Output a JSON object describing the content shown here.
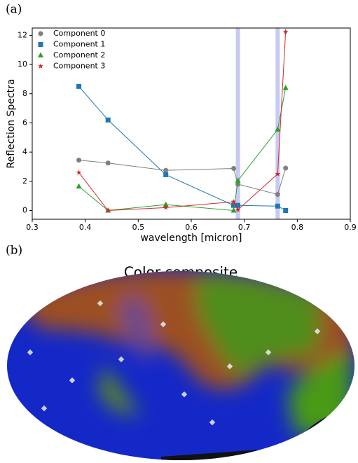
{
  "chart_data": [
    {
      "type": "line",
      "label": "(a)",
      "xlabel": "wavelength [micron]",
      "ylabel": "Reflection Spectra",
      "x": [
        0.388,
        0.443,
        0.552,
        0.68,
        0.688,
        0.763,
        0.778
      ],
      "series": [
        {
          "name": "Component 0",
          "color": "#7f7f7f",
          "marker": "circle",
          "values": [
            3.45,
            3.25,
            2.75,
            2.88,
            1.8,
            1.1,
            2.9
          ]
        },
        {
          "name": "Component 1",
          "color": "#1f77b4",
          "marker": "square",
          "values": [
            8.5,
            6.2,
            2.45,
            0.35,
            0.35,
            0.3,
            0.0
          ]
        },
        {
          "name": "Component 2",
          "color": "#2ca02c",
          "marker": "triangle",
          "values": [
            1.65,
            0.0,
            0.4,
            0.0,
            2.05,
            5.55,
            8.4
          ]
        },
        {
          "name": "Component 3",
          "color": "#d62728",
          "marker": "star",
          "values": [
            2.6,
            0.0,
            0.2,
            0.6,
            0.05,
            2.5,
            12.25
          ]
        }
      ],
      "vspans": [
        0.688,
        0.763
      ],
      "vspan_color": "#c9c9f4",
      "xlim": [
        0.3,
        0.9
      ],
      "xticks": [
        0.3,
        0.4,
        0.5,
        0.6,
        0.7,
        0.8,
        0.9
      ],
      "ylim": [
        -0.6,
        12.5
      ],
      "yticks": [
        0,
        2,
        4,
        6,
        8,
        10,
        12
      ],
      "legend": "upper left"
    },
    {
      "type": "image",
      "label": "(b)",
      "title": "Color composite"
    }
  ]
}
